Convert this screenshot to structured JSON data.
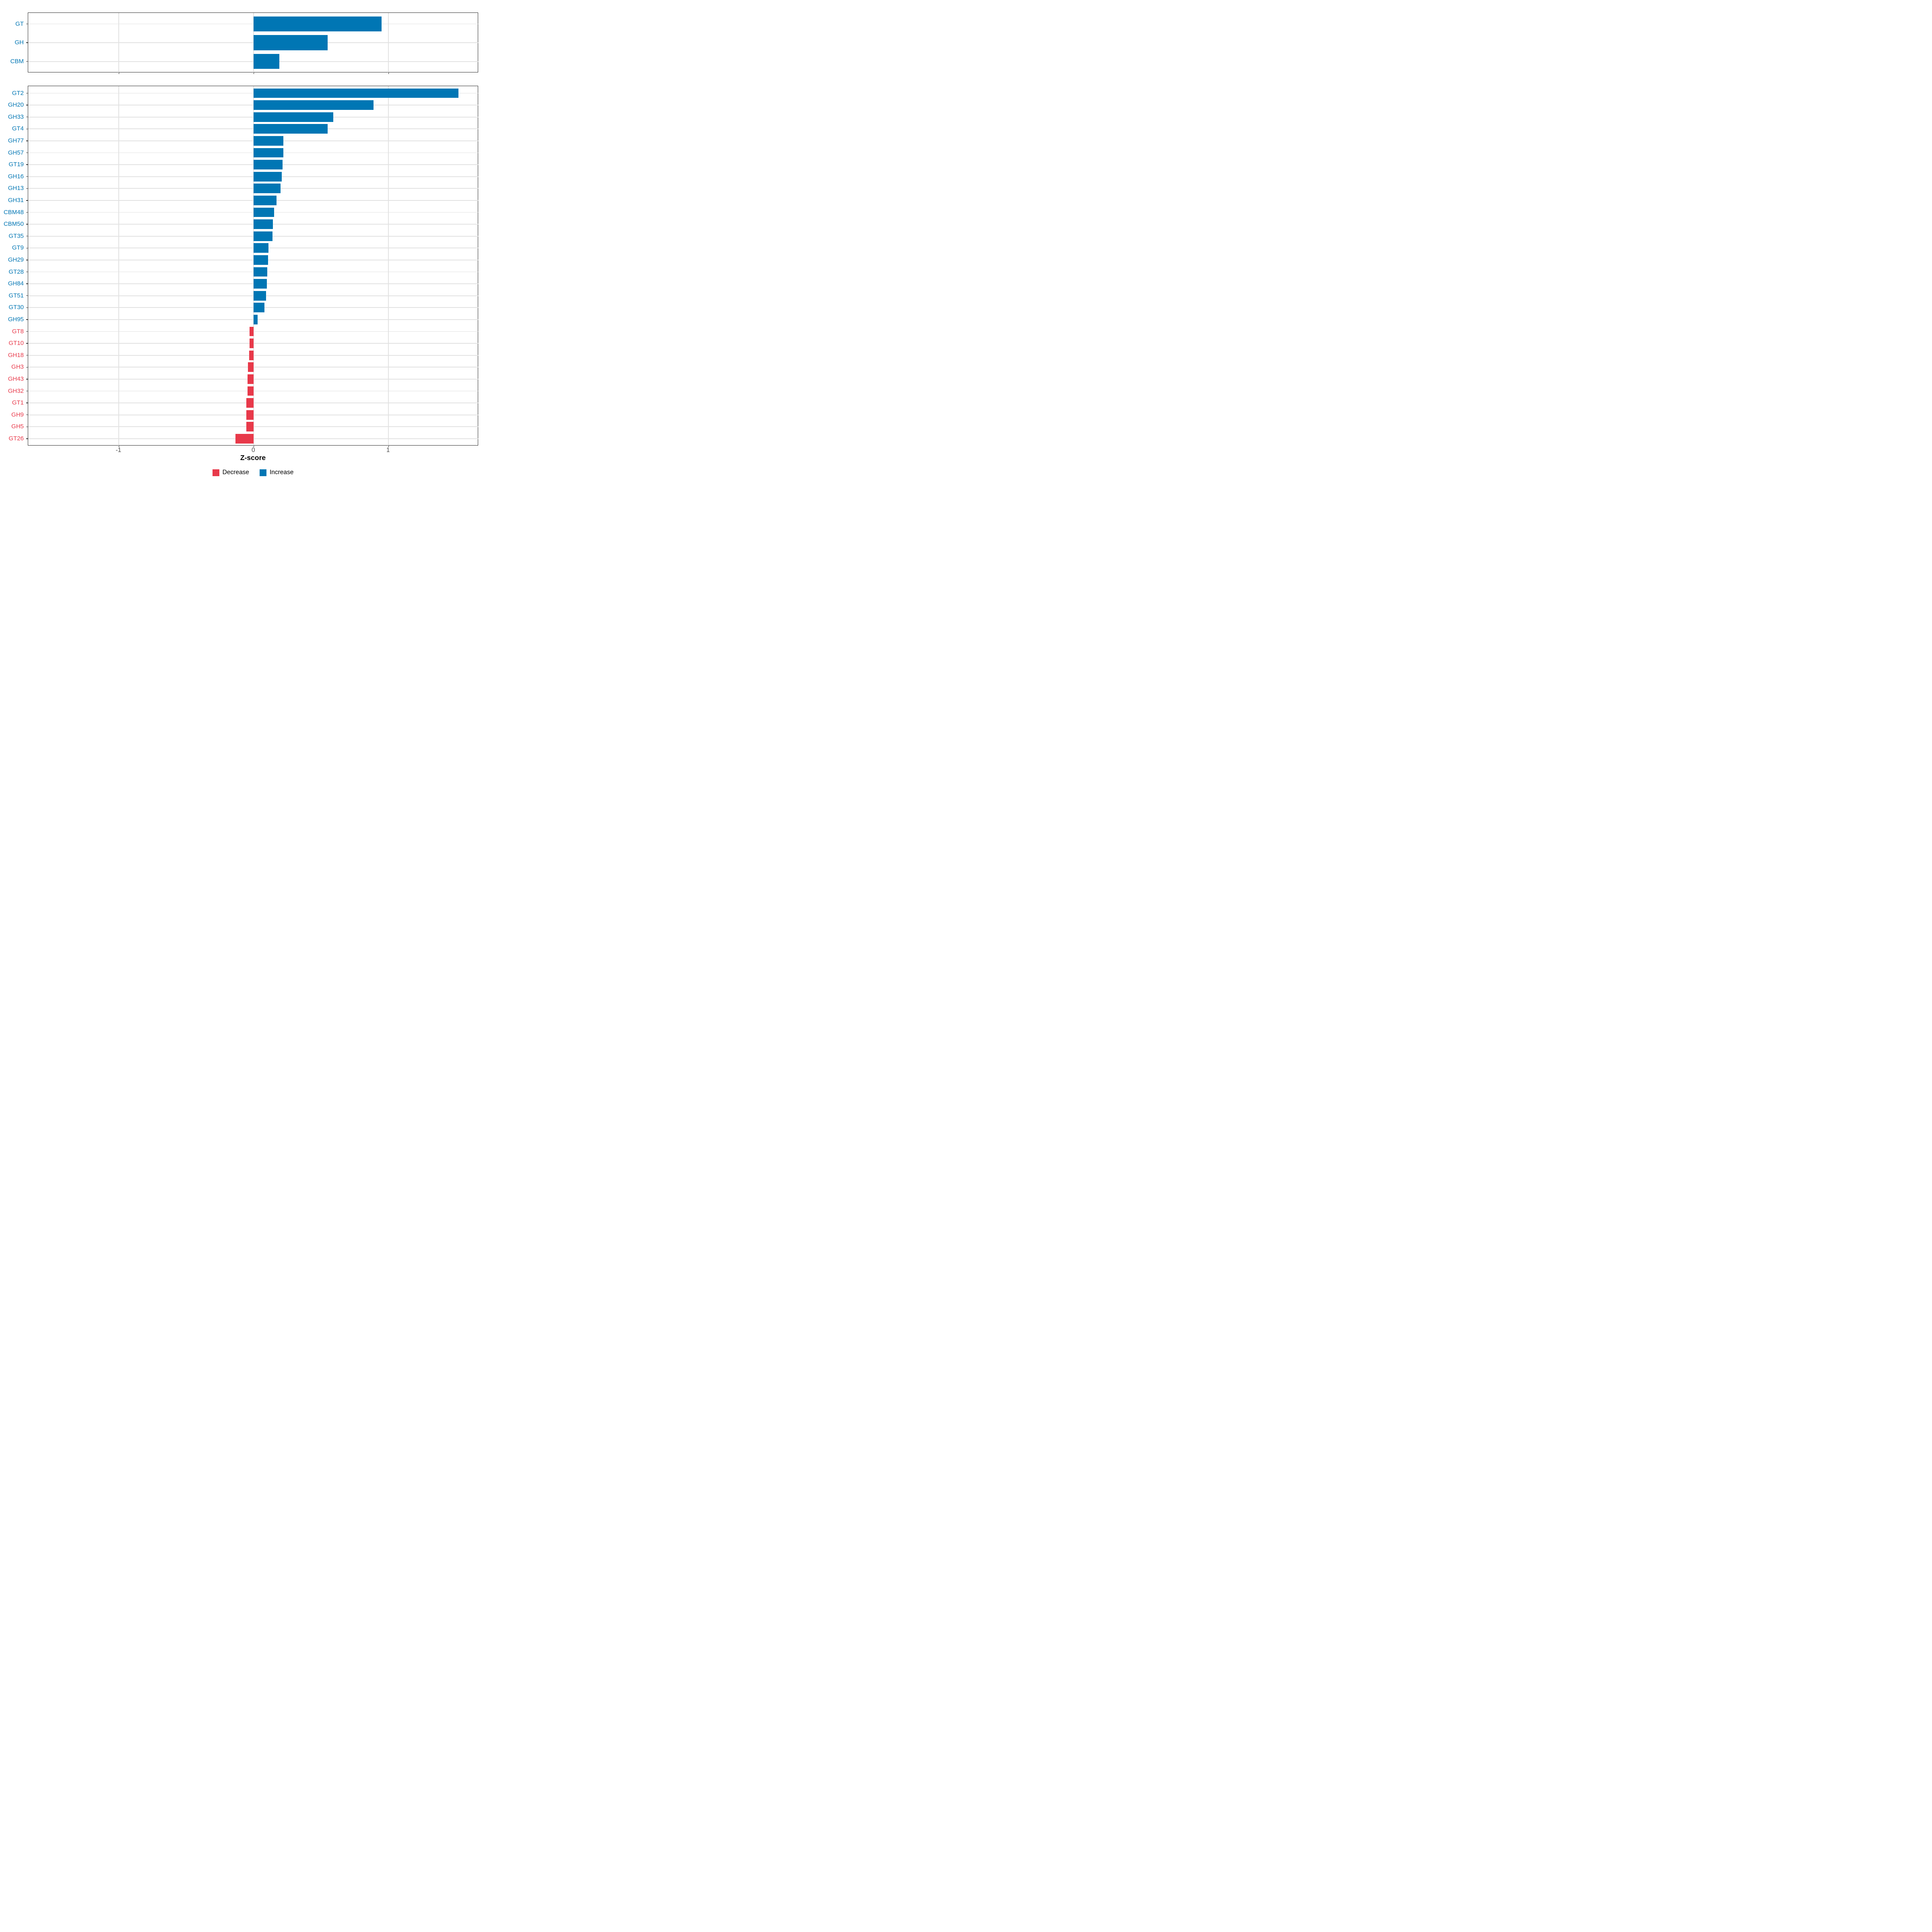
{
  "chart_data": {
    "type": "bar",
    "orientation": "horizontal",
    "title": "",
    "xlabel": "Z-score",
    "ylabel": "",
    "xlim": [
      -1.67,
      1.67
    ],
    "grid": true,
    "legend_position": "bottom",
    "x_ticks": [
      {
        "label": "-1",
        "value": -1
      },
      {
        "label": "0",
        "value": 0
      },
      {
        "label": "1",
        "value": 1
      }
    ],
    "panels": [
      {
        "name": "enzyme-classes",
        "categories": [
          "GT",
          "GH",
          "CBM"
        ],
        "values": [
          0.95,
          0.55,
          0.19
        ]
      },
      {
        "name": "enzyme-families",
        "categories": [
          "GT2",
          "GH20",
          "GH33",
          "GT4",
          "GH77",
          "GH57",
          "GT19",
          "GH16",
          "GH13",
          "GH31",
          "CBM48",
          "CBM50",
          "GT35",
          "GT9",
          "GH29",
          "GT28",
          "GH84",
          "GT51",
          "GT30",
          "GH95",
          "GT8",
          "GT10",
          "GH18",
          "GH3",
          "GH43",
          "GH32",
          "GT1",
          "GH9",
          "GH5",
          "GT26"
        ],
        "values": [
          1.52,
          0.89,
          0.59,
          0.55,
          0.22,
          0.219,
          0.215,
          0.209,
          0.2,
          0.168,
          0.15,
          0.143,
          0.14,
          0.109,
          0.108,
          0.102,
          0.097,
          0.092,
          0.081,
          0.03,
          -0.03,
          -0.032,
          -0.033,
          -0.042,
          -0.045,
          -0.046,
          -0.054,
          -0.055,
          -0.056,
          -0.136
        ]
      }
    ],
    "legend": [
      {
        "label": "Decrease",
        "color": "#E8394A"
      },
      {
        "label": "Increase",
        "color": "#0076B4"
      }
    ],
    "colors": {
      "increase": "#0076B4",
      "decrease": "#E8394A",
      "gridline": "#E2E2E2",
      "panel_border": "#2E2E2E",
      "tick": "#333333",
      "tick_label": "#4D4D4D",
      "axis_title": "#000000"
    }
  }
}
